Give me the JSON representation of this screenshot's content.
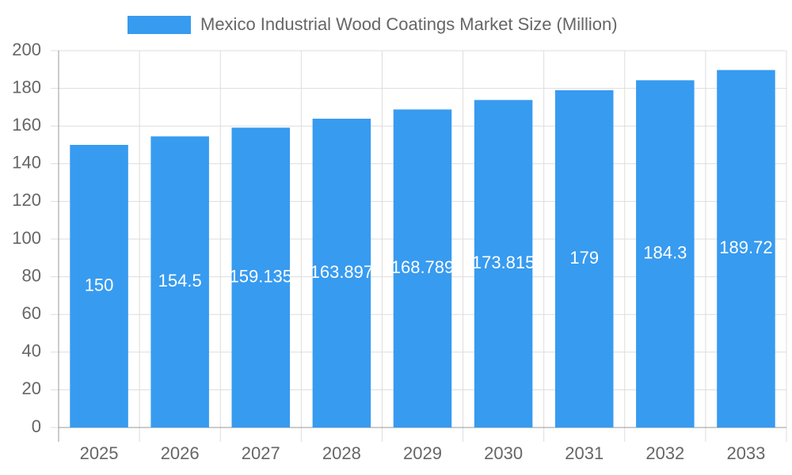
{
  "chart_data": {
    "type": "bar",
    "series": [
      {
        "name": "Mexico Industrial Wood Coatings Market Size (Million)",
        "color": "#379bf0",
        "values": [
          150,
          154.5,
          159.135,
          163.897,
          168.789,
          173.815,
          179,
          184.3,
          189.72
        ]
      }
    ],
    "categories": [
      "2025",
      "2026",
      "2027",
      "2028",
      "2029",
      "2030",
      "2031",
      "2032",
      "2033"
    ],
    "ylim": [
      0,
      200
    ],
    "yticks": [
      0,
      20,
      40,
      60,
      80,
      100,
      120,
      140,
      160,
      180,
      200
    ],
    "grid": true,
    "legend": "top"
  }
}
